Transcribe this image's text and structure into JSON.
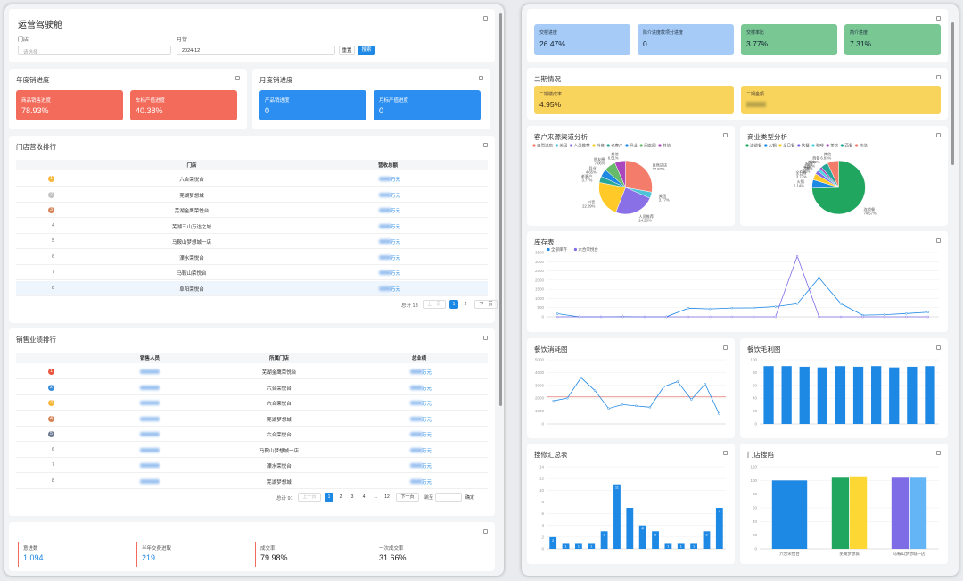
{
  "header": {
    "title": "运营驾驶舱",
    "store_label": "门店",
    "store_placeholder": "请选择",
    "month_label": "月份",
    "month_value": "2024-12",
    "reset": "重置",
    "search": "搜索"
  },
  "year_progress": {
    "title": "年度销进度",
    "cards": [
      {
        "label": "商品销售进度",
        "value": "78.93%"
      },
      {
        "label": "车标产值进度",
        "value": "40.38%"
      }
    ]
  },
  "month_progress": {
    "title": "月度销进度",
    "cards": [
      {
        "label": "产品销进度",
        "value": "0"
      },
      {
        "label": "月标产值进度",
        "value": "0"
      }
    ]
  },
  "store_ranking": {
    "title": "门店营收排行",
    "columns": [
      "门店",
      "营收总额"
    ],
    "unit": "万元",
    "rows": [
      {
        "rank": "1",
        "store": "六合荣悦台"
      },
      {
        "rank": "2",
        "store": "芜湖梦想城"
      },
      {
        "rank": "3",
        "store": "芜湖金鹰荣悦台"
      },
      {
        "rank": "4",
        "store": "芜湖三山万达之城"
      },
      {
        "rank": "5",
        "store": "马鞍山梦想城一店"
      },
      {
        "rank": "6",
        "store": "溧水荣悦台"
      },
      {
        "rank": "7",
        "store": "马鞍山荣悦台"
      },
      {
        "rank": "8",
        "store": "阜阳荣悦台"
      }
    ],
    "total": "总计 13",
    "prev": "上一页",
    "pages": [
      "1",
      "2"
    ],
    "next": "下一页"
  },
  "sales_ranking": {
    "title": "销售业绩排行",
    "columns": [
      "销售人员",
      "所属门店",
      "总业绩"
    ],
    "unit": "万元",
    "rows": [
      {
        "rank": "1",
        "store": "芜湖金鹰荣悦台"
      },
      {
        "rank": "2",
        "store": "六合荣悦台"
      },
      {
        "rank": "3",
        "store": "六合荣悦台"
      },
      {
        "rank": "4",
        "store": "芜湖梦想城"
      },
      {
        "rank": "5",
        "store": "六合荣悦台"
      },
      {
        "rank": "6",
        "store": "马鞍山梦想城一店"
      },
      {
        "rank": "7",
        "store": "溧水荣悦台"
      },
      {
        "rank": "8",
        "store": "芜湖梦想城"
      }
    ],
    "total": "总计 91",
    "prev": "上一页",
    "pages": [
      "1",
      "2",
      "3",
      "4",
      "…",
      "12"
    ],
    "next": "下一页",
    "jump": "跳至",
    "confirm": "确定"
  },
  "bottom_kpis": [
    {
      "label": "意进数",
      "value": "1,094"
    },
    {
      "label": "半年交费进取",
      "value": "219"
    },
    {
      "label": "成交率",
      "value": "79.98%"
    },
    {
      "label": "一次成交率",
      "value": "31.66%"
    }
  ],
  "right_kpis": [
    {
      "label": "交楼进度",
      "value": "26.47%"
    },
    {
      "label": "除介进度款项分进度",
      "value": "0"
    },
    {
      "label": "交楼率比",
      "value": "3.77%"
    },
    {
      "label": "简介进度",
      "value": "7.31%"
    }
  ],
  "phase2": {
    "title": "二期情况",
    "cards": [
      {
        "label": "二期楼成率",
        "value": "4.95%"
      },
      {
        "label": "二期金额"
      }
    ]
  },
  "charts": {
    "customer_source": {
      "type": "pie",
      "title": "客户来源渠道分析",
      "categories": [
        "自然进店",
        "美团",
        "人员推荐",
        "抖音",
        "老客户",
        "异业",
        "朋友圈",
        "其他"
      ],
      "values": [
        27.87,
        3.77,
        24.28,
        22.09,
        3.77,
        4.65,
        7.06,
        6.51
      ],
      "value_labels": [
        "27.87%",
        "3.77%",
        "24.28%",
        "22.09%",
        "3.77%",
        "4.65%",
        "7.06%",
        "6.51%"
      ],
      "colors": [
        "#f47c6a",
        "#4cc3d9",
        "#8a70e6",
        "#ffca28",
        "#26a69a",
        "#1e88e5",
        "#66bb6a",
        "#ab47bc"
      ]
    },
    "business_type": {
      "type": "pie",
      "title": "商业类型分析",
      "categories": [
        "连锁餐",
        "火锅",
        "全日餐",
        "快餐",
        "咖啡",
        "茶饮",
        "西餐",
        "其他"
      ],
      "values": [
        74.57,
        5.14,
        3.77,
        2.16,
        1.85,
        1.36,
        4.32,
        6.83
      ],
      "value_labels": [
        "74.57%",
        "5.14%",
        "3.77%",
        "2.16%",
        "1.85%",
        "1.36%",
        "4.32%",
        "6.83%"
      ],
      "colors": [
        "#21a660",
        "#1e88e5",
        "#ffca28",
        "#7e6be6",
        "#4dd0e1",
        "#ab47bc",
        "#26a69a",
        "#f47c6a"
      ]
    },
    "stock": {
      "type": "line",
      "title": "库存表",
      "categories": [
        null,
        null,
        null,
        null,
        null,
        null,
        null,
        null,
        null,
        null,
        null,
        null,
        null,
        null,
        null,
        null,
        null,
        null
      ],
      "ylim": [
        0,
        3500
      ],
      "yticks": [
        0,
        500,
        1000,
        1500,
        2000,
        2500,
        3000,
        3500
      ],
      "series": [
        {
          "name": "全部库存",
          "color": "#1e88e5",
          "values": [
            170,
            2,
            1,
            11,
            1,
            4,
            470,
            430,
            480,
            490,
            560,
            712,
            2125,
            715,
            91,
            114,
            180,
            254
          ]
        },
        {
          "name": "六合荣悦台",
          "color": "#7e6be6",
          "values": [
            0,
            0,
            0,
            0,
            0,
            0,
            0,
            0,
            0,
            0,
            0,
            3300,
            0,
            0,
            0,
            0,
            0,
            0
          ]
        }
      ]
    },
    "catering_cost": {
      "type": "line",
      "title": "餐饮消耗图",
      "ylim": [
        0,
        5000
      ],
      "yticks": [
        0,
        1000,
        2000,
        3000,
        4000,
        5000
      ],
      "categories": [
        null,
        null,
        null,
        null,
        null,
        null,
        null,
        null,
        null,
        null,
        null,
        null,
        null
      ],
      "mean_line": 2100,
      "series": [
        {
          "color": "#1e88e5",
          "values": [
            1800,
            2000,
            3600,
            2600,
            1200,
            1500,
            1400,
            1300,
            2900,
            3300,
            1900,
            3100,
            800
          ]
        }
      ]
    },
    "catering_profit": {
      "type": "bar",
      "title": "餐饮毛利图",
      "ylim": [
        0,
        100
      ],
      "yticks": [
        0,
        20,
        40,
        60,
        80,
        100
      ],
      "categories": [
        null,
        null,
        null,
        null,
        null,
        null,
        null,
        null,
        null,
        null
      ],
      "series": [
        {
          "color": "#1e88e5",
          "values": [
            90,
            90,
            89,
            88,
            90,
            89,
            90,
            88,
            89,
            90
          ]
        }
      ]
    },
    "repair_summary": {
      "type": "bar",
      "title": "搜修汇总表",
      "ylim": [
        0,
        14
      ],
      "yticks": [
        0,
        2,
        4,
        6,
        8,
        10,
        12,
        14
      ],
      "categories": [
        null,
        null,
        null,
        null,
        null,
        null,
        null,
        null,
        null,
        null,
        null,
        null,
        null,
        null
      ],
      "show_labels": true,
      "series": [
        {
          "color": "#1e88e5",
          "values": [
            2,
            1,
            1,
            1,
            3,
            11,
            7,
            4,
            3,
            1,
            1,
            1,
            3,
            7
          ]
        }
      ]
    },
    "store_repair": {
      "type": "bar",
      "title": "门店搜陷",
      "ylim": [
        0,
        120
      ],
      "yticks": [
        0,
        20,
        40,
        60,
        80,
        100,
        120
      ],
      "categories": [
        "六合荣悦台",
        "芜湖梦想城",
        "马鞍山梦想城一店"
      ],
      "series": [
        {
          "color": "#1e88e5",
          "values": [
            100,
            null,
            null
          ]
        },
        {
          "color": "#21a660",
          "values": [
            null,
            104,
            null
          ]
        },
        {
          "color": "#fdd835",
          "values": [
            null,
            106,
            null
          ]
        },
        {
          "color": "#7e6be6",
          "values": [
            null,
            null,
            104
          ]
        },
        {
          "color": "#64b5f6",
          "values": [
            null,
            null,
            104
          ]
        }
      ]
    }
  }
}
